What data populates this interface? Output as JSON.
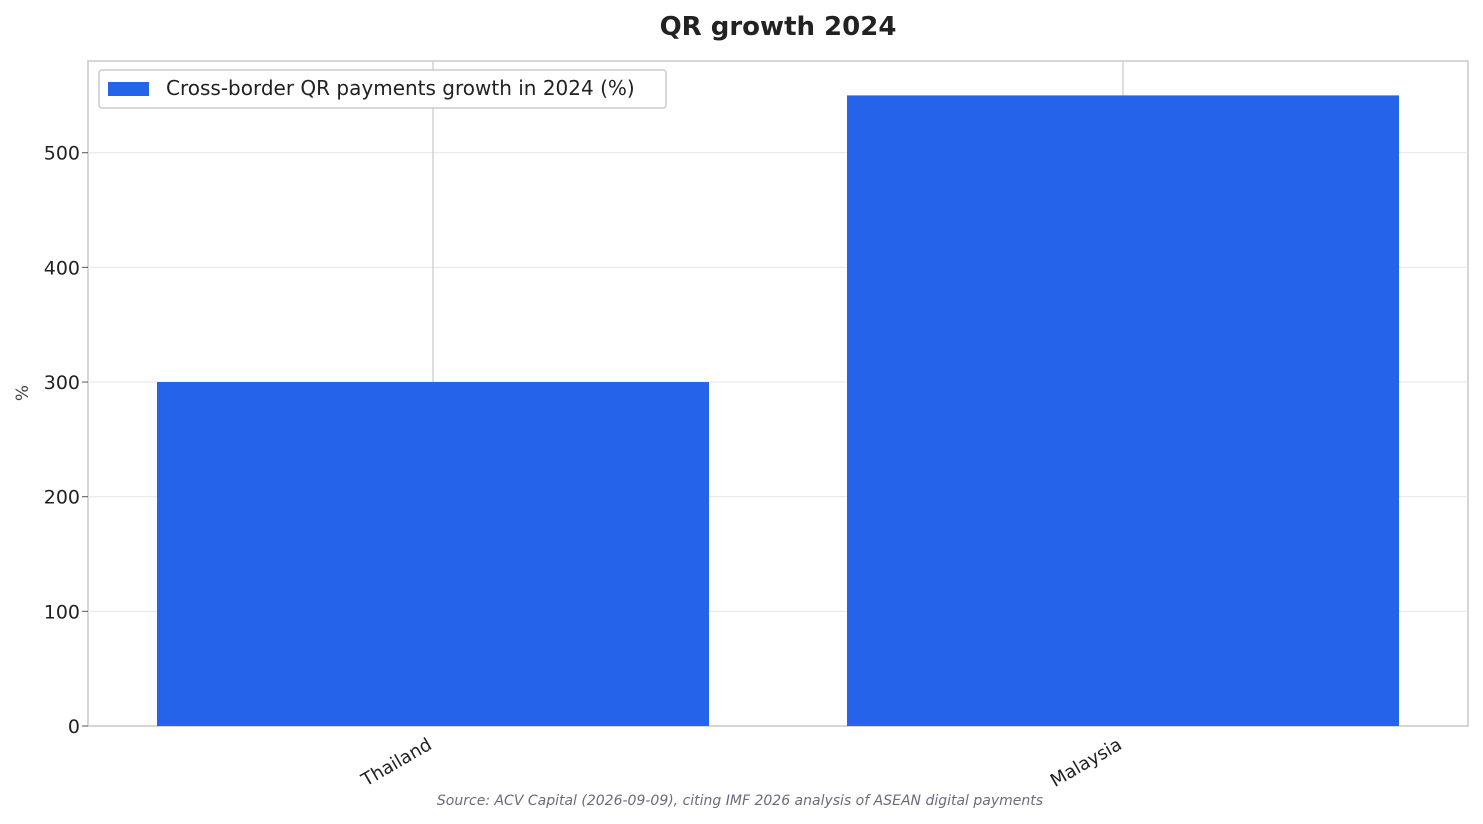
{
  "chart_data": {
    "type": "bar",
    "title": "QR growth 2024",
    "xlabel": "",
    "ylabel": "%",
    "categories": [
      "Thailand",
      "Malaysia"
    ],
    "series": [
      {
        "name": "Cross-border QR payments growth in 2024 (%)",
        "values": [
          300,
          550
        ],
        "color": "#2563eb"
      }
    ],
    "ylim": [
      0,
      580
    ],
    "yticks": [
      0,
      100,
      200,
      300,
      400,
      500
    ],
    "grid": true,
    "legend_position": "top-left",
    "source": "Source: ACV Capital (2026-09-09), citing IMF 2026 analysis of ASEAN digital payments"
  }
}
